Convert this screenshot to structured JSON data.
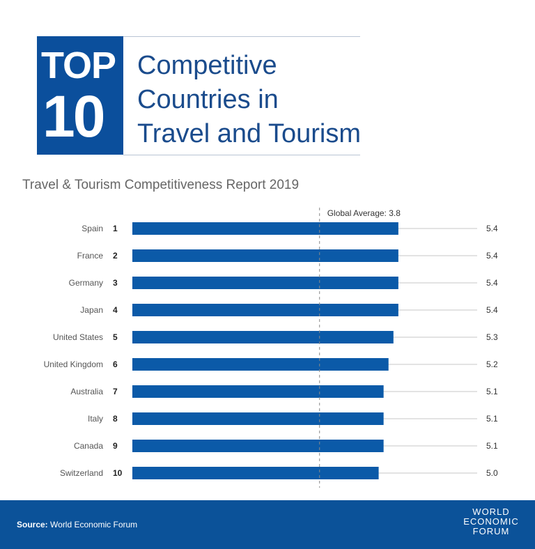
{
  "header": {
    "top_label": "TOP",
    "top_number": "10",
    "title_lines": [
      "Competitive",
      "Countries in",
      "Travel and Tourism"
    ]
  },
  "subtitle": "Travel & Tourism Competitiveness Report 2019",
  "footer": {
    "source_label": "Source:",
    "source_value": "World Economic Forum",
    "logo_lines": [
      "WORLD",
      "ECONOMIC",
      "FORUM"
    ]
  },
  "chart_data": {
    "type": "bar",
    "orientation": "horizontal",
    "categories": [
      "Spain",
      "France",
      "Germany",
      "Japan",
      "United States",
      "United Kingdom",
      "Australia",
      "Italy",
      "Canada",
      "Switzerland"
    ],
    "ranks": [
      "1",
      "2",
      "3",
      "4",
      "5",
      "6",
      "7",
      "8",
      "9",
      "10"
    ],
    "values": [
      5.4,
      5.4,
      5.4,
      5.4,
      5.3,
      5.2,
      5.1,
      5.1,
      5.1,
      5.0
    ],
    "value_labels": [
      "5.4",
      "5.4",
      "5.4",
      "5.4",
      "5.3",
      "5.2",
      "5.1",
      "5.1",
      "5.1",
      "5.0"
    ],
    "xlim": [
      0,
      7
    ],
    "reference_line": {
      "label": "Global Average: 3.8",
      "value": 3.8
    },
    "grid": false,
    "colors": {
      "bar": "#0b5aa8",
      "track": "#e3e3e3",
      "reference": "#888888"
    }
  }
}
